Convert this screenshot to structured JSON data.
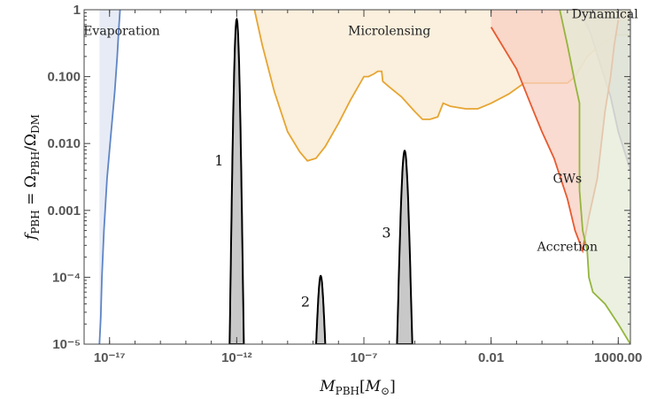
{
  "chart_data": {
    "type": "area",
    "xlabel": "M_PBH[M_⊙]",
    "ylabel": "f_PBH = Ω_PBH/Ω_DM",
    "x_scale": "log",
    "y_scale": "log",
    "xlim": [
      1e-18,
      3000
    ],
    "ylim": [
      1e-05,
      1
    ],
    "x_ticks": [
      {
        "value": 1e-17,
        "label": "10^-17"
      },
      {
        "value": 1e-12,
        "label": "10^-12"
      },
      {
        "value": 1e-07,
        "label": "10^-7"
      },
      {
        "value": 0.01,
        "label": "0.01"
      },
      {
        "value": 1000,
        "label": "1000.00"
      }
    ],
    "y_ticks": [
      {
        "value": 1e-05,
        "label": "10^-5"
      },
      {
        "value": 0.0001,
        "label": "10^-4"
      },
      {
        "value": 0.001,
        "label": "0.001"
      },
      {
        "value": 0.01,
        "label": "0.010"
      },
      {
        "value": 0.1,
        "label": "0.100"
      },
      {
        "value": 1,
        "label": "1"
      }
    ],
    "constraints": [
      {
        "label": "Evaporation",
        "fill": "#dde4f1",
        "stroke": "#5f85c5",
        "label_at": [
          3e-17,
          0.42
        ],
        "boundary": [
          [
            4e-18,
            1e-05
          ],
          [
            4.5e-18,
            2.5e-05
          ],
          [
            5e-18,
            0.0001
          ],
          [
            6e-18,
            0.0005
          ],
          [
            8e-18,
            0.003
          ],
          [
            1.1e-17,
            0.012
          ],
          [
            1.6e-17,
            0.06
          ],
          [
            2e-17,
            0.2
          ],
          [
            2.3e-17,
            0.5
          ],
          [
            2.6e-17,
            1
          ]
        ]
      },
      {
        "label": "Microlensing",
        "fill": "#faead2",
        "stroke": "#e6a532",
        "label_at": [
          1e-06,
          0.42
        ],
        "boundary": [
          [
            5e-12,
            1
          ],
          [
            1e-11,
            0.3
          ],
          [
            3e-11,
            0.06
          ],
          [
            1e-10,
            0.015
          ],
          [
            3e-10,
            0.0075
          ],
          [
            6e-10,
            0.0055
          ],
          [
            1.3e-09,
            0.006
          ],
          [
            3e-09,
            0.009
          ],
          [
            1e-08,
            0.02
          ],
          [
            3e-08,
            0.045
          ],
          [
            1e-07,
            0.1
          ],
          [
            1.5e-07,
            0.1
          ],
          [
            2.5e-07,
            0.11
          ],
          [
            3.5e-07,
            0.12
          ],
          [
            5e-07,
            0.12
          ],
          [
            5.5e-07,
            0.085
          ],
          [
            1e-06,
            0.07
          ],
          [
            3e-06,
            0.05
          ],
          [
            1e-05,
            0.03
          ],
          [
            2e-05,
            0.023
          ],
          [
            4e-05,
            0.023
          ],
          [
            8e-05,
            0.025
          ],
          [
            0.00013,
            0.04
          ],
          [
            0.00025,
            0.036
          ],
          [
            0.001,
            0.033
          ],
          [
            0.003,
            0.033
          ],
          [
            0.01,
            0.04
          ],
          [
            0.05,
            0.055
          ],
          [
            0.2,
            0.08
          ],
          [
            10,
            0.08
          ],
          [
            20,
            0.1
          ],
          [
            60,
            0.2
          ],
          [
            200,
            0.3
          ],
          [
            800,
            0.42
          ],
          [
            3000,
            0.42
          ]
        ]
      },
      {
        "label": "Dynamical",
        "fill": "#cbbfd0",
        "stroke": "#8c7cba",
        "label_at": [
          300,
          0.75
        ],
        "boundary": [
          [
            30,
            1
          ],
          [
            80,
            0.45
          ],
          [
            200,
            0.15
          ],
          [
            500,
            0.05
          ],
          [
            1000,
            0.015
          ],
          [
            3000,
            0.004
          ]
        ]
      },
      {
        "label": "GWs",
        "fill": "#f8cfc2",
        "stroke": "#e85a30",
        "label_at": [
          10,
          0.0026
        ],
        "boundary": [
          [
            0.01,
            0.55
          ],
          [
            0.1,
            0.13
          ],
          [
            0.4,
            0.035
          ],
          [
            1,
            0.015
          ],
          [
            3,
            0.006
          ],
          [
            10,
            0.0015
          ],
          [
            20,
            0.0005
          ],
          [
            40,
            0.00025
          ],
          [
            70,
            0.0008
          ],
          [
            150,
            0.003
          ],
          [
            300,
            0.03
          ],
          [
            500,
            0.1
          ],
          [
            700,
            0.3
          ],
          [
            1000,
            0.7
          ]
        ]
      },
      {
        "label": "Accretion",
        "fill": "#e4ebd7",
        "stroke": "#94b53d",
        "label_at": [
          10,
          0.00025
        ],
        "boundary": [
          [
            5,
            1
          ],
          [
            10,
            0.3
          ],
          [
            20,
            0.08
          ],
          [
            30,
            0.04
          ],
          [
            30,
            0.002
          ],
          [
            40,
            0.0005
          ],
          [
            60,
            0.00025
          ],
          [
            70,
            0.0001
          ],
          [
            100,
            6e-05
          ],
          [
            300,
            4e-05
          ],
          [
            1000,
            2e-05
          ],
          [
            3000,
            1e-05
          ]
        ]
      }
    ],
    "peaks": [
      {
        "label": "1",
        "center": 1e-12,
        "peak": 0.72,
        "half_width_dex": 0.28
      },
      {
        "label": "2",
        "center": 2e-09,
        "peak": 0.000105,
        "half_width_dex": 0.18
      },
      {
        "label": "3",
        "center": 4e-06,
        "peak": 0.0078,
        "half_width_dex": 0.3
      }
    ]
  }
}
